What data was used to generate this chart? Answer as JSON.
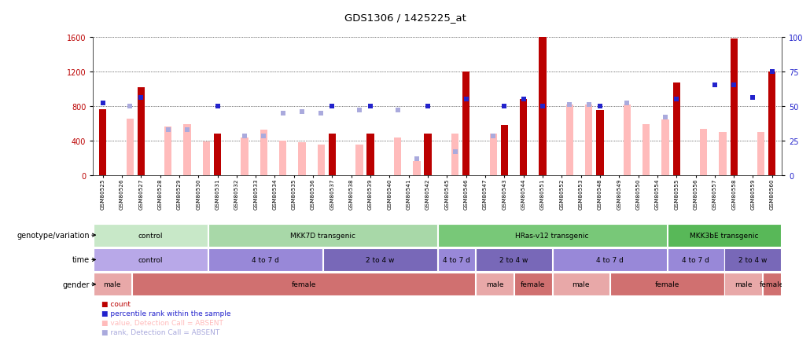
{
  "title": "GDS1306 / 1425225_at",
  "samples": [
    "GSM80525",
    "GSM80526",
    "GSM80527",
    "GSM80528",
    "GSM80529",
    "GSM80530",
    "GSM80531",
    "GSM80532",
    "GSM80533",
    "GSM80534",
    "GSM80535",
    "GSM80536",
    "GSM80537",
    "GSM80538",
    "GSM80539",
    "GSM80540",
    "GSM80541",
    "GSM80542",
    "GSM80545",
    "GSM80546",
    "GSM80547",
    "GSM80543",
    "GSM80544",
    "GSM80551",
    "GSM80552",
    "GSM80553",
    "GSM80548",
    "GSM80549",
    "GSM80550",
    "GSM80554",
    "GSM80555",
    "GSM80556",
    "GSM80557",
    "GSM80558",
    "GSM80559",
    "GSM80560"
  ],
  "count": [
    760,
    0,
    1020,
    0,
    0,
    0,
    480,
    0,
    0,
    0,
    0,
    0,
    480,
    0,
    480,
    0,
    0,
    480,
    0,
    1200,
    0,
    580,
    880,
    1600,
    0,
    0,
    750,
    0,
    0,
    0,
    1070,
    0,
    0,
    1580,
    0,
    1200
  ],
  "value_absent": [
    0,
    650,
    0,
    560,
    590,
    390,
    0,
    430,
    520,
    400,
    380,
    350,
    0,
    350,
    0,
    430,
    160,
    0,
    480,
    0,
    480,
    0,
    0,
    0,
    820,
    820,
    0,
    820,
    590,
    640,
    0,
    530,
    500,
    0,
    500,
    0
  ],
  "rank_present": [
    52,
    0,
    56,
    0,
    0,
    0,
    50,
    0,
    0,
    0,
    0,
    0,
    50,
    0,
    50,
    0,
    0,
    50,
    0,
    55,
    0,
    50,
    55,
    50,
    0,
    0,
    50,
    0,
    0,
    0,
    55,
    0,
    65,
    65,
    56,
    75
  ],
  "rank_absent": [
    0,
    50,
    0,
    33,
    33,
    0,
    0,
    28,
    28,
    45,
    46,
    45,
    0,
    47,
    0,
    47,
    12,
    0,
    17,
    0,
    28,
    0,
    0,
    0,
    51,
    51,
    0,
    52,
    0,
    42,
    0,
    0,
    0,
    0,
    0,
    0
  ],
  "ylim_left": [
    0,
    1600
  ],
  "ylim_right": [
    0,
    100
  ],
  "yticks_left": [
    0,
    400,
    800,
    1200,
    1600
  ],
  "yticks_right": [
    0,
    25,
    50,
    75,
    100
  ],
  "genotype_groups": [
    {
      "label": "control",
      "start": 0,
      "end": 6,
      "color": "#c8e8c8"
    },
    {
      "label": "MKK7D transgenic",
      "start": 6,
      "end": 18,
      "color": "#a8d8a8"
    },
    {
      "label": "HRas-v12 transgenic",
      "start": 18,
      "end": 30,
      "color": "#78c878"
    },
    {
      "label": "MKK3bE transgenic",
      "start": 30,
      "end": 36,
      "color": "#58b858"
    }
  ],
  "time_groups": [
    {
      "label": "control",
      "start": 0,
      "end": 6,
      "color": "#b8a8e8"
    },
    {
      "label": "4 to 7 d",
      "start": 6,
      "end": 12,
      "color": "#9888d8"
    },
    {
      "label": "2 to 4 w",
      "start": 12,
      "end": 18,
      "color": "#7868b8"
    },
    {
      "label": "4 to 7 d",
      "start": 18,
      "end": 20,
      "color": "#9888d8"
    },
    {
      "label": "2 to 4 w",
      "start": 20,
      "end": 24,
      "color": "#7868b8"
    },
    {
      "label": "4 to 7 d",
      "start": 24,
      "end": 30,
      "color": "#9888d8"
    },
    {
      "label": "4 to 7 d",
      "start": 30,
      "end": 33,
      "color": "#9888d8"
    },
    {
      "label": "2 to 4 w",
      "start": 33,
      "end": 36,
      "color": "#7868b8"
    }
  ],
  "gender_groups": [
    {
      "label": "male",
      "start": 0,
      "end": 2,
      "color": "#e8a8a8"
    },
    {
      "label": "female",
      "start": 2,
      "end": 20,
      "color": "#d07070"
    },
    {
      "label": "male",
      "start": 20,
      "end": 22,
      "color": "#e8a8a8"
    },
    {
      "label": "female",
      "start": 22,
      "end": 24,
      "color": "#d07070"
    },
    {
      "label": "male",
      "start": 24,
      "end": 27,
      "color": "#e8a8a8"
    },
    {
      "label": "female",
      "start": 27,
      "end": 33,
      "color": "#d07070"
    },
    {
      "label": "male",
      "start": 33,
      "end": 35,
      "color": "#e8a8a8"
    },
    {
      "label": "female",
      "start": 35,
      "end": 36,
      "color": "#d07070"
    }
  ],
  "red_color": "#bb0000",
  "pink_color": "#ffbbbb",
  "blue_color": "#2222cc",
  "light_blue_color": "#aaaadd",
  "bg_color": "#ffffff"
}
